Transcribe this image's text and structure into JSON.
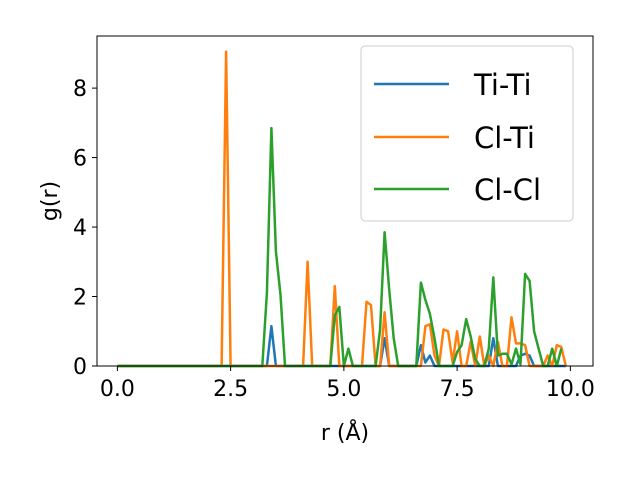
{
  "chart_data": {
    "type": "line",
    "xlabel": "r (Å)",
    "ylabel": "g(r)",
    "xlim": [
      -0.45,
      10.5
    ],
    "ylim": [
      0,
      9.5
    ],
    "xticks": [
      0.0,
      2.5,
      5.0,
      7.5,
      10.0
    ],
    "xtick_labels": [
      "0.0",
      "2.5",
      "5.0",
      "7.5",
      "10.0"
    ],
    "yticks": [
      0,
      2,
      4,
      6,
      8
    ],
    "ytick_labels": [
      "0",
      "2",
      "4",
      "6",
      "8"
    ],
    "grid": false,
    "legend_position": "top-right",
    "series": [
      {
        "name": "Ti-Ti",
        "color": "#1f77b4",
        "x": [
          0.0,
          3.3,
          3.4,
          3.5,
          3.7,
          5.7,
          5.8,
          5.9,
          6.0,
          6.6,
          6.7,
          6.8,
          6.9,
          7.0,
          8.2,
          8.3,
          8.4,
          8.8,
          8.9,
          9.0,
          9.1,
          9.2,
          9.9
        ],
        "y": [
          0.0,
          0.0,
          1.15,
          0.0,
          0.0,
          0.0,
          0.0,
          0.8,
          0.0,
          0.0,
          0.6,
          0.1,
          0.3,
          0.0,
          0.0,
          0.8,
          0.0,
          0.0,
          0.3,
          0.35,
          0.3,
          0.0,
          0.0
        ]
      },
      {
        "name": "Cl-Ti",
        "color": "#ff7f0e",
        "x": [
          0.0,
          2.3,
          2.4,
          2.5,
          4.1,
          4.2,
          4.3,
          4.7,
          4.8,
          4.9,
          5.4,
          5.5,
          5.6,
          5.7,
          5.8,
          5.9,
          6.0,
          6.7,
          6.8,
          6.9,
          7.0,
          7.1,
          7.2,
          7.3,
          7.4,
          7.5,
          7.6,
          7.7,
          7.8,
          7.9,
          8.0,
          8.1,
          8.2,
          8.3,
          8.4,
          8.5,
          8.6,
          8.7,
          8.8,
          8.9,
          9.0,
          9.1,
          9.2,
          9.3,
          9.4,
          9.5,
          9.6,
          9.7,
          9.8,
          9.9
        ],
        "y": [
          0.0,
          0.0,
          9.05,
          0.0,
          0.0,
          3.0,
          0.0,
          0.0,
          2.3,
          0.0,
          0.0,
          1.85,
          1.75,
          0.0,
          0.0,
          1.55,
          0.0,
          0.0,
          1.15,
          1.2,
          0.3,
          0.0,
          1.05,
          1.0,
          0.1,
          1.0,
          0.0,
          0.0,
          0.7,
          0.0,
          0.85,
          0.0,
          0.3,
          0.0,
          0.7,
          0.0,
          0.0,
          1.4,
          0.65,
          0.65,
          0.6,
          0.0,
          0.0,
          0.0,
          0.0,
          0.3,
          0.0,
          0.6,
          0.55,
          0.0
        ]
      },
      {
        "name": "Cl-Cl",
        "color": "#2ca02c",
        "x": [
          0.0,
          3.2,
          3.3,
          3.4,
          3.5,
          3.6,
          3.7,
          4.7,
          4.8,
          4.9,
          5.0,
          5.1,
          5.2,
          5.7,
          5.8,
          5.9,
          6.0,
          6.1,
          6.2,
          6.6,
          6.7,
          6.8,
          6.9,
          7.0,
          7.1,
          7.2,
          7.4,
          7.5,
          7.6,
          7.7,
          7.8,
          7.9,
          8.0,
          8.1,
          8.2,
          8.3,
          8.4,
          8.5,
          8.6,
          8.7,
          8.8,
          8.9,
          9.0,
          9.1,
          9.2,
          9.3,
          9.4,
          9.5,
          9.6,
          9.7,
          9.8
        ],
        "y": [
          0.0,
          0.0,
          2.1,
          6.85,
          3.3,
          2.05,
          0.0,
          0.0,
          1.45,
          1.7,
          0.0,
          0.5,
          0.0,
          0.0,
          1.05,
          3.85,
          2.2,
          0.8,
          0.0,
          0.0,
          2.4,
          1.9,
          1.5,
          0.8,
          0.0,
          0.0,
          0.0,
          0.4,
          0.6,
          1.35,
          0.85,
          0.2,
          0.0,
          0.0,
          0.5,
          2.55,
          0.3,
          0.35,
          0.35,
          0.05,
          0.5,
          0.05,
          2.65,
          2.45,
          1.0,
          0.5,
          0.0,
          0.0,
          0.5,
          0.0,
          0.5
        ]
      }
    ]
  }
}
